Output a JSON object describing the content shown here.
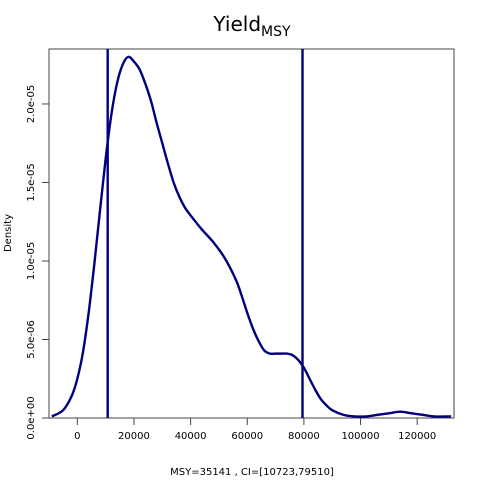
{
  "chart_data": {
    "type": "line",
    "title_main": "Yield",
    "title_subscript": "MSY",
    "xlabel": "MSY=35141 , CI=[10723,79510]",
    "ylabel": "Density",
    "xlim": [
      -10000,
      133000
    ],
    "ylim": [
      0,
      2.35e-05
    ],
    "x_ticks": [
      0,
      20000,
      40000,
      60000,
      80000,
      100000,
      120000
    ],
    "x_tick_labels": [
      "0",
      "20000",
      "40000",
      "60000",
      "80000",
      "100000",
      "120000"
    ],
    "y_ticks": [
      0,
      5e-06,
      1e-05,
      1.5e-05,
      2e-05
    ],
    "y_tick_labels": [
      "0.0e+00",
      "5.0e-06",
      "1.0e-05",
      "1.5e-05",
      "2.0e-05"
    ],
    "grid": false,
    "series": [
      {
        "color": "#00007f",
        "x": [
          -9000,
          -5000,
          -2000,
          0,
          2000,
          4000,
          6000,
          8000,
          10000,
          12000,
          14000,
          16000,
          18000,
          20000,
          22000,
          24000,
          26000,
          28000,
          30000,
          32000,
          34000,
          36000,
          38000,
          40000,
          44000,
          48000,
          52000,
          56000,
          58000,
          60000,
          62000,
          64000,
          66000,
          68000,
          70000,
          72000,
          74000,
          76000,
          78000,
          80000,
          82000,
          84000,
          86000,
          88000,
          90000,
          94000,
          98000,
          102000,
          106000,
          110000,
          114000,
          118000,
          122000,
          126000,
          132000
        ],
        "y": [
          1e-07,
          5e-07,
          1.4e-06,
          2.5e-06,
          4.2e-06,
          6.7e-06,
          9.8e-06,
          1.32e-05,
          1.65e-05,
          1.93e-05,
          2.13e-05,
          2.25e-05,
          2.3e-05,
          2.27e-05,
          2.22e-05,
          2.13e-05,
          2.02e-05,
          1.88e-05,
          1.75e-05,
          1.62e-05,
          1.5e-05,
          1.41e-05,
          1.34e-05,
          1.29e-05,
          1.2e-05,
          1.12e-05,
          1.02e-05,
          8.8e-06,
          7.8e-06,
          6.7e-06,
          5.7e-06,
          4.9e-06,
          4.3e-06,
          4.1e-06,
          4.1e-06,
          4.1e-06,
          4.1e-06,
          4e-06,
          3.7e-06,
          3.2e-06,
          2.5e-06,
          1.8e-06,
          1.2e-06,
          8e-07,
          5e-07,
          2e-07,
          1e-07,
          1e-07,
          2e-07,
          3e-07,
          4e-07,
          3e-07,
          2e-07,
          1e-07,
          1e-07
        ]
      }
    ],
    "vlines": [
      {
        "x": 10723,
        "color": "#00007f"
      },
      {
        "x": 79510,
        "color": "#00007f"
      }
    ]
  }
}
